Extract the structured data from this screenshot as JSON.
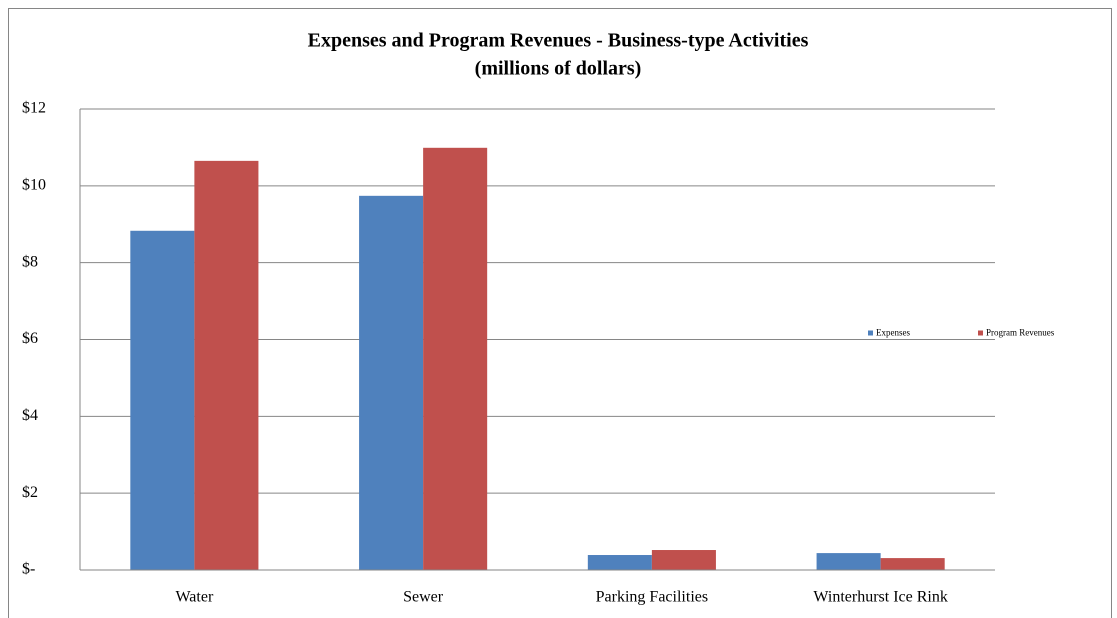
{
  "chart_data": {
    "type": "bar",
    "title": "Expenses and Program Revenues - Business-type Activities",
    "subtitle": "(millions  of dollars)",
    "categories": [
      "Water",
      "Sewer",
      "Parking Facilities",
      "Winterhurst Ice Rink"
    ],
    "series": [
      {
        "name": "Expenses",
        "color": "#4f81bd",
        "values": [
          8.83,
          9.74,
          0.39,
          0.44
        ]
      },
      {
        "name": "Program Revenues",
        "color": "#c0504d",
        "values": [
          10.65,
          10.99,
          0.52,
          0.31
        ]
      }
    ],
    "ylim": [
      0,
      12
    ],
    "yticks": [
      {
        "value": 0,
        "label": "$-"
      },
      {
        "value": 2,
        "label": "$2"
      },
      {
        "value": 4,
        "label": "$4"
      },
      {
        "value": 6,
        "label": "$6"
      },
      {
        "value": 8,
        "label": "$8"
      },
      {
        "value": 10,
        "label": "$10"
      },
      {
        "value": 12,
        "label": "$12"
      }
    ],
    "grid": true,
    "legend": "right"
  }
}
